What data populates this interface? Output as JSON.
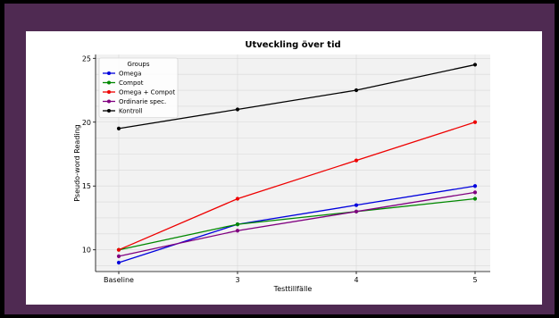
{
  "colors": {
    "frame_border": "#000000",
    "frame": "#4f2a52",
    "card": "#ffffff",
    "plot_bg": "#f2f2f2",
    "grid": "#d8d8d8"
  },
  "chart_data": {
    "type": "line",
    "title": "Utveckling över tid",
    "xlabel": "Testtillfälle",
    "ylabel": "Pseudo-word Reading",
    "categories": [
      "Baseline",
      "3",
      "4",
      "5"
    ],
    "ylim": [
      8.3,
      25.3
    ],
    "yticks": [
      10,
      15,
      20,
      25
    ],
    "grid": true,
    "legend": {
      "title": "Groups",
      "placement": "top-left"
    },
    "series": [
      {
        "name": "Omega",
        "color": "#0000dd",
        "values": [
          9.0,
          12.0,
          13.5,
          15.0
        ]
      },
      {
        "name": "Compot",
        "color": "#008800",
        "values": [
          10.0,
          12.0,
          13.0,
          14.0
        ]
      },
      {
        "name": "Omega + Compot",
        "color": "#ee0000",
        "values": [
          10.0,
          14.0,
          17.0,
          20.0
        ]
      },
      {
        "name": "Ordinarie spec.",
        "color": "#800080",
        "values": [
          9.5,
          11.5,
          13.0,
          14.5
        ]
      },
      {
        "name": "Kontroll",
        "color": "#000000",
        "values": [
          19.5,
          21.0,
          22.5,
          24.5
        ]
      }
    ]
  }
}
